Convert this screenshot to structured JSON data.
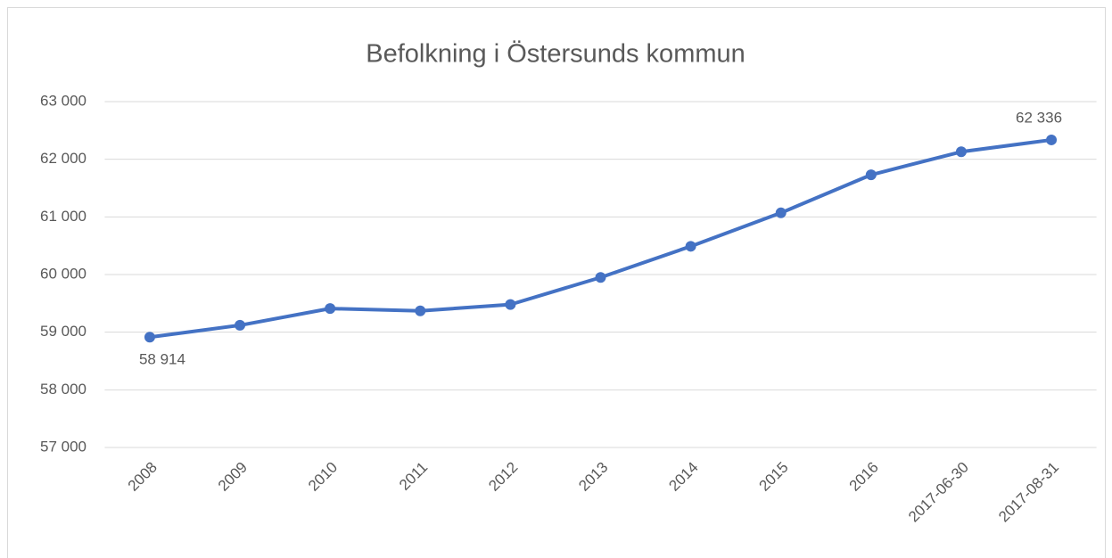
{
  "chart_data": {
    "type": "line",
    "title": "Befolkning i Östersunds kommun",
    "categories": [
      "2008",
      "2009",
      "2010",
      "2011",
      "2012",
      "2013",
      "2014",
      "2015",
      "2016",
      "2017-06-30",
      "2017-08-31"
    ],
    "series": [
      {
        "name": "Befolkning",
        "color": "#4472c4",
        "values": [
          58914,
          59120,
          59410,
          59370,
          59480,
          59950,
          60490,
          61070,
          61730,
          62130,
          62336
        ],
        "value_labels": [
          "58 914",
          null,
          null,
          null,
          null,
          null,
          null,
          null,
          null,
          null,
          "62 336"
        ]
      }
    ],
    "ylim": [
      57000,
      63000
    ],
    "yticks": [
      {
        "value": 57000,
        "label": "57 000"
      },
      {
        "value": 58000,
        "label": "58 000"
      },
      {
        "value": 59000,
        "label": "59 000"
      },
      {
        "value": 60000,
        "label": "60 000"
      },
      {
        "value": 61000,
        "label": "61 000"
      },
      {
        "value": 62000,
        "label": "62 000"
      },
      {
        "value": 63000,
        "label": "63 000"
      }
    ],
    "grid": true
  }
}
